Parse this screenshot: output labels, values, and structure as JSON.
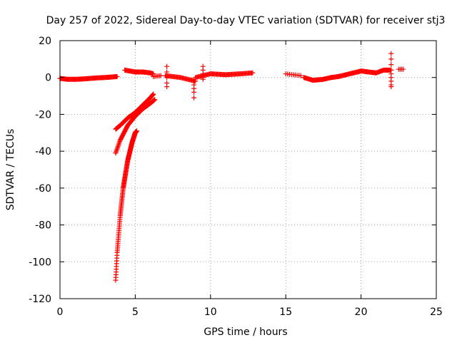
{
  "chart_data": {
    "type": "scatter",
    "title": "Day 257 of 2022, Sidereal Day-to-day VTEC variation (SDTVAR) for receiver stj3",
    "xlabel": "GPS time / hours",
    "ylabel": "SDTVAR / TECUs",
    "xlim": [
      0,
      25
    ],
    "ylim": [
      -120,
      20
    ],
    "xticks": [
      0,
      5,
      10,
      15,
      20,
      25
    ],
    "yticks": [
      20,
      0,
      -20,
      -40,
      -60,
      -80,
      -100,
      -120
    ],
    "grid": true,
    "marker": "+",
    "series": [
      {
        "color": "#ff0000",
        "segments": [
          {
            "x": [
              0.0,
              0.5,
              1.0,
              1.5,
              2.0,
              2.5,
              3.0,
              3.5,
              3.8
            ],
            "y": [
              -0.5,
              -1.0,
              -1.0,
              -0.8,
              -0.5,
              -0.2,
              0.0,
              0.3,
              0.5
            ],
            "step": 0.05
          },
          {
            "x": [
              4.3,
              5.0,
              5.5,
              6.0,
              6.2
            ],
            "y": [
              4.0,
              3.0,
              3.0,
              2.5,
              2.0
            ],
            "step": 0.05
          },
          {
            "x": [
              6.2,
              6.7
            ],
            "y": [
              0.5,
              1.0
            ],
            "step": 0.1
          },
          {
            "x": [
              7.0,
              7.5,
              8.0,
              8.5,
              9.0
            ],
            "y": [
              1.0,
              0.5,
              0.0,
              -1.0,
              -2.0
            ],
            "step": 0.06
          },
          {
            "x": [
              9.0,
              9.5,
              10.0,
              11.0,
              12.0,
              12.8
            ],
            "y": [
              0.0,
              1.0,
              2.0,
              1.5,
              2.0,
              2.5
            ],
            "step": 0.06
          },
          {
            "x": [
              15.0,
              15.5,
              16.0
            ],
            "y": [
              2.0,
              1.5,
              1.0
            ],
            "step": 0.12
          },
          {
            "x": [
              16.2,
              16.8,
              17.5,
              18.0,
              18.5,
              19.0,
              19.5,
              20.0,
              20.5,
              21.0,
              21.5,
              22.0
            ],
            "y": [
              0.0,
              -1.5,
              -1.0,
              0.0,
              0.5,
              1.5,
              2.5,
              3.5,
              3.0,
              2.5,
              4.0,
              4.0
            ],
            "step": 0.05
          },
          {
            "x": [
              22.5,
              22.8
            ],
            "y": [
              4.5,
              4.5
            ],
            "step": 0.1
          },
          {
            "x": [
              3.7,
              4.0,
              4.5,
              5.0,
              5.5,
              6.0,
              6.2
            ],
            "y": [
              -28,
              -26,
              -22,
              -19,
              -15,
              -11,
              -9
            ],
            "step": 0.03
          },
          {
            "x": [
              3.7,
              4.0,
              4.5,
              5.0,
              5.5,
              6.0,
              6.3
            ],
            "y": [
              -41,
              -34,
              -26,
              -21,
              -17,
              -14,
              -12
            ],
            "step": 0.03
          },
          {
            "x": [
              3.7,
              3.8,
              3.9,
              4.0,
              4.2,
              4.5,
              4.8,
              5.0,
              5.1
            ],
            "y": [
              -110,
              -95,
              -85,
              -75,
              -60,
              -45,
              -35,
              -30,
              -29
            ],
            "step": 0.01
          },
          {
            "x": [
              22.0,
              22.0,
              22.0,
              22.0,
              22.0,
              22.0,
              22.0,
              22.0,
              22.0
            ],
            "y": [
              13,
              10,
              7,
              4,
              2,
              0,
              -2,
              -4,
              -5
            ],
            "step": 1
          },
          {
            "x": [
              7.1,
              7.1,
              7.1,
              7.1,
              7.1
            ],
            "y": [
              6,
              3,
              0,
              -3,
              -5
            ],
            "step": 1
          },
          {
            "x": [
              8.9,
              8.9,
              8.9,
              8.9,
              8.9
            ],
            "y": [
              -11,
              -8,
              -6,
              -4,
              -2
            ],
            "step": 1
          },
          {
            "x": [
              9.5,
              9.5,
              9.5,
              9.5,
              9.5
            ],
            "y": [
              6,
              4,
              2,
              0,
              -1
            ],
            "step": 1
          }
        ]
      }
    ]
  }
}
